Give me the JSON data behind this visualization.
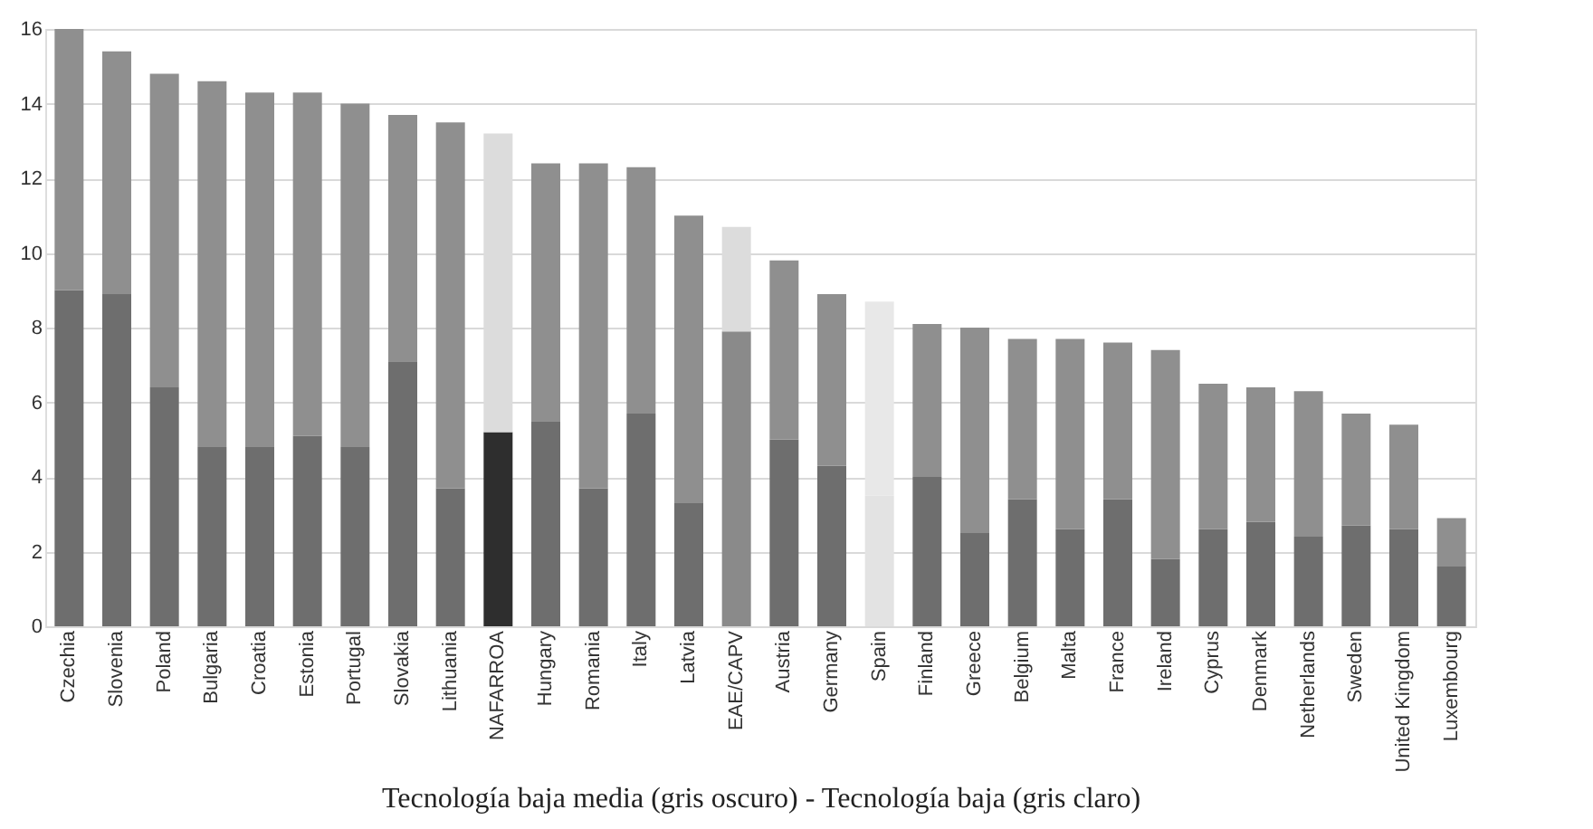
{
  "chart_data": {
    "type": "bar",
    "stacked": true,
    "xlabel": "Tecnología baja media  (gris oscuro) - Tecnología baja (gris claro)",
    "categories": [
      "Czechia",
      "Slovenia",
      "Poland",
      "Bulgaria",
      "Croatia",
      "Estonia",
      "Portugal",
      "Slovakia",
      "Lithuania",
      "NAFARROA",
      "Hungary",
      "Romania",
      "Italy",
      "Latvia",
      "EAE/CAPV",
      "Austria",
      "Germany",
      "Spain",
      "Finland",
      "Greece",
      "Belgium",
      "Malta",
      "France",
      "Ireland",
      "Cyprus",
      "Denmark",
      "Netherlands",
      "Sweden",
      "United Kingdom",
      "Luxembourg"
    ],
    "series": [
      {
        "colors": [
          "#6e6e6e",
          "#6e6e6e",
          "#6e6e6e",
          "#6e6e6e",
          "#6e6e6e",
          "#6e6e6e",
          "#6e6e6e",
          "#6e6e6e",
          "#6e6e6e",
          "#2e2e2e",
          "#6e6e6e",
          "#6e6e6e",
          "#6e6e6e",
          "#6e6e6e",
          "#8a8a8a",
          "#6e6e6e",
          "#6e6e6e",
          "#e3e3e3",
          "#6e6e6e",
          "#6e6e6e",
          "#6e6e6e",
          "#6e6e6e",
          "#6e6e6e",
          "#6e6e6e",
          "#6e6e6e",
          "#6e6e6e",
          "#6e6e6e",
          "#6e6e6e",
          "#6e6e6e",
          "#6e6e6e"
        ],
        "values": [
          9.0,
          8.9,
          6.4,
          4.8,
          4.8,
          5.1,
          4.8,
          7.1,
          3.7,
          5.2,
          5.5,
          3.7,
          5.7,
          3.3,
          7.9,
          5.0,
          4.3,
          3.5,
          4.0,
          2.5,
          3.4,
          2.6,
          3.4,
          1.8,
          2.6,
          2.8,
          2.4,
          2.7,
          2.6,
          1.6
        ]
      },
      {
        "colors": [
          "#8f8f8f",
          "#8f8f8f",
          "#8f8f8f",
          "#8f8f8f",
          "#8f8f8f",
          "#8f8f8f",
          "#8f8f8f",
          "#8f8f8f",
          "#8f8f8f",
          "#dcdcdc",
          "#8f8f8f",
          "#8f8f8f",
          "#8f8f8f",
          "#8f8f8f",
          "#dcdcdc",
          "#8f8f8f",
          "#8f8f8f",
          "#e8e8e8",
          "#8f8f8f",
          "#8f8f8f",
          "#8f8f8f",
          "#8f8f8f",
          "#8f8f8f",
          "#8f8f8f",
          "#8f8f8f",
          "#8f8f8f",
          "#8f8f8f",
          "#8f8f8f",
          "#8f8f8f",
          "#8f8f8f"
        ],
        "values": [
          7.0,
          6.5,
          8.4,
          9.8,
          9.5,
          9.2,
          9.2,
          6.6,
          9.8,
          8.0,
          6.9,
          8.7,
          6.6,
          7.7,
          2.8,
          4.8,
          4.6,
          5.2,
          4.1,
          5.5,
          4.3,
          5.1,
          4.2,
          5.6,
          3.9,
          3.6,
          3.9,
          3.0,
          2.8,
          1.3
        ]
      }
    ],
    "ylim": [
      0,
      16
    ],
    "yticks": [
      0,
      2,
      4,
      6,
      8,
      10,
      12,
      14,
      16
    ],
    "grid": "y"
  }
}
